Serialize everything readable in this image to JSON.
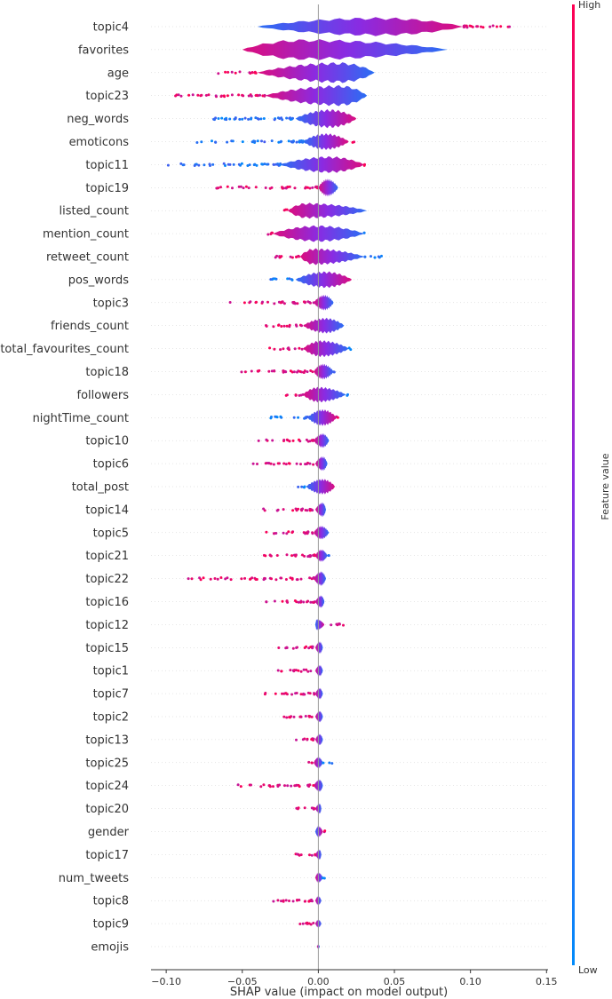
{
  "chart_data": {
    "type": "violin",
    "title": "",
    "xlabel": "SHAP value (impact on model output)",
    "ylabel": "",
    "xlim": [
      -0.11,
      0.151
    ],
    "xticks": [
      -0.1,
      -0.05,
      0.0,
      0.05,
      0.1,
      0.15
    ],
    "xtick_labels": [
      "−0.10",
      "−0.05",
      "0.00",
      "0.05",
      "0.10",
      "0.15"
    ],
    "colorbar": {
      "title": "Feature value",
      "high_label": "High",
      "low_label": "Low",
      "low_color": "#008bfb",
      "high_color": "#ff0052"
    },
    "features": [
      {
        "name": "topic4",
        "min": -0.04,
        "max": 0.14,
        "body": [
          -0.04,
          0.095
        ],
        "width": 0.9,
        "mode": 0.04,
        "highSide": "right"
      },
      {
        "name": "favorites",
        "min": -0.05,
        "max": 0.085,
        "body": [
          -0.05,
          0.085
        ],
        "width": 1.0,
        "mode": -0.01,
        "highSide": "left"
      },
      {
        "name": "age",
        "min": -0.07,
        "max": 0.037,
        "body": [
          -0.04,
          0.037
        ],
        "width": 1.0,
        "mode": 0.015,
        "highSide": "left"
      },
      {
        "name": "topic23",
        "min": -0.095,
        "max": 0.032,
        "body": [
          -0.035,
          0.032
        ],
        "width": 1.0,
        "mode": 0.015,
        "highSide": "left"
      },
      {
        "name": "neg_words",
        "min": -0.078,
        "max": 0.025,
        "body": [
          -0.015,
          0.025
        ],
        "width": 0.9,
        "mode": 0.008,
        "highSide": "right"
      },
      {
        "name": "emoticons",
        "min": -0.08,
        "max": 0.024,
        "body": [
          -0.01,
          0.02
        ],
        "width": 0.8,
        "mode": 0.005,
        "highSide": "right"
      },
      {
        "name": "topic11",
        "min": -0.1,
        "max": 0.034,
        "body": [
          -0.025,
          0.03
        ],
        "width": 0.8,
        "mode": 0.008,
        "highSide": "right"
      },
      {
        "name": "topic19",
        "min": -0.07,
        "max": 0.013,
        "body": [
          0.0,
          0.013
        ],
        "width": 0.85,
        "mode": 0.006,
        "highSide": "left"
      },
      {
        "name": "listed_count",
        "min": -0.025,
        "max": 0.033,
        "body": [
          -0.02,
          0.032
        ],
        "width": 0.75,
        "mode": -0.008,
        "highSide": "left"
      },
      {
        "name": "mention_count",
        "min": -0.037,
        "max": 0.033,
        "body": [
          -0.03,
          0.03
        ],
        "width": 0.8,
        "mode": 0.0,
        "highSide": "left"
      },
      {
        "name": "retweet_count",
        "min": -0.04,
        "max": 0.046,
        "body": [
          -0.012,
          0.03
        ],
        "width": 0.8,
        "mode": -0.003,
        "highSide": "left"
      },
      {
        "name": "pos_words",
        "min": -0.032,
        "max": 0.022,
        "body": [
          -0.015,
          0.022
        ],
        "width": 0.8,
        "mode": 0.005,
        "highSide": "right"
      },
      {
        "name": "topic3",
        "min": -0.065,
        "max": 0.01,
        "body": [
          -0.003,
          0.01
        ],
        "width": 0.75,
        "mode": 0.004,
        "highSide": "left"
      },
      {
        "name": "friends_count",
        "min": -0.037,
        "max": 0.017,
        "body": [
          -0.01,
          0.017
        ],
        "width": 0.75,
        "mode": 0.005,
        "highSide": "left"
      },
      {
        "name": "total_favourites_count",
        "min": -0.032,
        "max": 0.022,
        "body": [
          -0.01,
          0.02
        ],
        "width": 0.8,
        "mode": 0.002,
        "highSide": "left"
      },
      {
        "name": "topic18",
        "min": -0.06,
        "max": 0.012,
        "body": [
          -0.003,
          0.01
        ],
        "width": 0.75,
        "mode": 0.003,
        "highSide": "left"
      },
      {
        "name": "followers",
        "min": -0.025,
        "max": 0.02,
        "body": [
          -0.01,
          0.018
        ],
        "width": 0.75,
        "mode": 0.0,
        "highSide": "left"
      },
      {
        "name": "nightTime_count",
        "min": -0.037,
        "max": 0.014,
        "body": [
          -0.007,
          0.012
        ],
        "width": 0.8,
        "mode": 0.003,
        "highSide": "right"
      },
      {
        "name": "topic10",
        "min": -0.045,
        "max": 0.007,
        "body": [
          -0.003,
          0.007
        ],
        "width": 0.7,
        "mode": 0.003,
        "highSide": "left"
      },
      {
        "name": "topic6",
        "min": -0.045,
        "max": 0.006,
        "body": [
          -0.002,
          0.006
        ],
        "width": 0.7,
        "mode": 0.003,
        "highSide": "left"
      },
      {
        "name": "total_post",
        "min": -0.017,
        "max": 0.011,
        "body": [
          -0.008,
          0.011
        ],
        "width": 0.75,
        "mode": 0.003,
        "highSide": "right"
      },
      {
        "name": "topic14",
        "min": -0.038,
        "max": 0.005,
        "body": [
          -0.002,
          0.005
        ],
        "width": 0.7,
        "mode": 0.003,
        "highSide": "left"
      },
      {
        "name": "topic5",
        "min": -0.04,
        "max": 0.007,
        "body": [
          -0.003,
          0.007
        ],
        "width": 0.65,
        "mode": 0.002,
        "highSide": "left"
      },
      {
        "name": "topic21",
        "min": -0.048,
        "max": 0.009,
        "body": [
          -0.002,
          0.006
        ],
        "width": 0.6,
        "mode": 0.002,
        "highSide": "left"
      },
      {
        "name": "topic22",
        "min": -0.09,
        "max": 0.005,
        "body": [
          -0.003,
          0.005
        ],
        "width": 0.7,
        "mode": 0.002,
        "highSide": "left"
      },
      {
        "name": "topic16",
        "min": -0.038,
        "max": 0.004,
        "body": [
          -0.002,
          0.004
        ],
        "width": 0.6,
        "mode": 0.002,
        "highSide": "left"
      },
      {
        "name": "topic12",
        "min": -0.003,
        "max": 0.018,
        "body": [
          -0.002,
          0.004
        ],
        "width": 0.55,
        "mode": -0.001,
        "highSide": "right"
      },
      {
        "name": "topic15",
        "min": -0.028,
        "max": 0.003,
        "body": [
          -0.002,
          0.003
        ],
        "width": 0.6,
        "mode": 0.001,
        "highSide": "left"
      },
      {
        "name": "topic1",
        "min": -0.032,
        "max": 0.003,
        "body": [
          -0.002,
          0.003
        ],
        "width": 0.55,
        "mode": 0.001,
        "highSide": "left"
      },
      {
        "name": "topic7",
        "min": -0.037,
        "max": 0.003,
        "body": [
          -0.002,
          0.003
        ],
        "width": 0.55,
        "mode": 0.001,
        "highSide": "left"
      },
      {
        "name": "topic2",
        "min": -0.03,
        "max": 0.003,
        "body": [
          -0.002,
          0.003
        ],
        "width": 0.55,
        "mode": 0.001,
        "highSide": "left"
      },
      {
        "name": "topic13",
        "min": -0.02,
        "max": 0.003,
        "body": [
          -0.002,
          0.003
        ],
        "width": 0.55,
        "mode": 0.001,
        "highSide": "left"
      },
      {
        "name": "topic25",
        "min": -0.008,
        "max": 0.01,
        "body": [
          -0.003,
          0.003
        ],
        "width": 0.55,
        "mode": 0.0,
        "highSide": "left"
      },
      {
        "name": "topic24",
        "min": -0.053,
        "max": 0.003,
        "body": [
          -0.003,
          0.003
        ],
        "width": 0.6,
        "mode": 0.001,
        "highSide": "left"
      },
      {
        "name": "topic20",
        "min": -0.02,
        "max": 0.002,
        "body": [
          -0.002,
          0.002
        ],
        "width": 0.5,
        "mode": 0.001,
        "highSide": "left"
      },
      {
        "name": "gender",
        "min": -0.003,
        "max": 0.006,
        "body": [
          -0.002,
          0.003
        ],
        "width": 0.55,
        "mode": 0.0,
        "highSide": "right"
      },
      {
        "name": "topic17",
        "min": -0.02,
        "max": 0.002,
        "body": [
          -0.002,
          0.002
        ],
        "width": 0.5,
        "mode": 0.001,
        "highSide": "left"
      },
      {
        "name": "num_tweets",
        "min": -0.003,
        "max": 0.006,
        "body": [
          -0.002,
          0.003
        ],
        "width": 0.5,
        "mode": 0.0,
        "highSide": "left"
      },
      {
        "name": "topic8",
        "min": -0.035,
        "max": 0.002,
        "body": [
          -0.002,
          0.002
        ],
        "width": 0.45,
        "mode": 0.0,
        "highSide": "left"
      },
      {
        "name": "topic9",
        "min": -0.018,
        "max": 0.002,
        "body": [
          -0.002,
          0.002
        ],
        "width": 0.4,
        "mode": 0.0,
        "highSide": "left"
      },
      {
        "name": "emojis",
        "min": -0.001,
        "max": 0.001,
        "body": [
          -0.001,
          0.001
        ],
        "width": 0.2,
        "mode": 0.0,
        "highSide": "left"
      }
    ]
  }
}
